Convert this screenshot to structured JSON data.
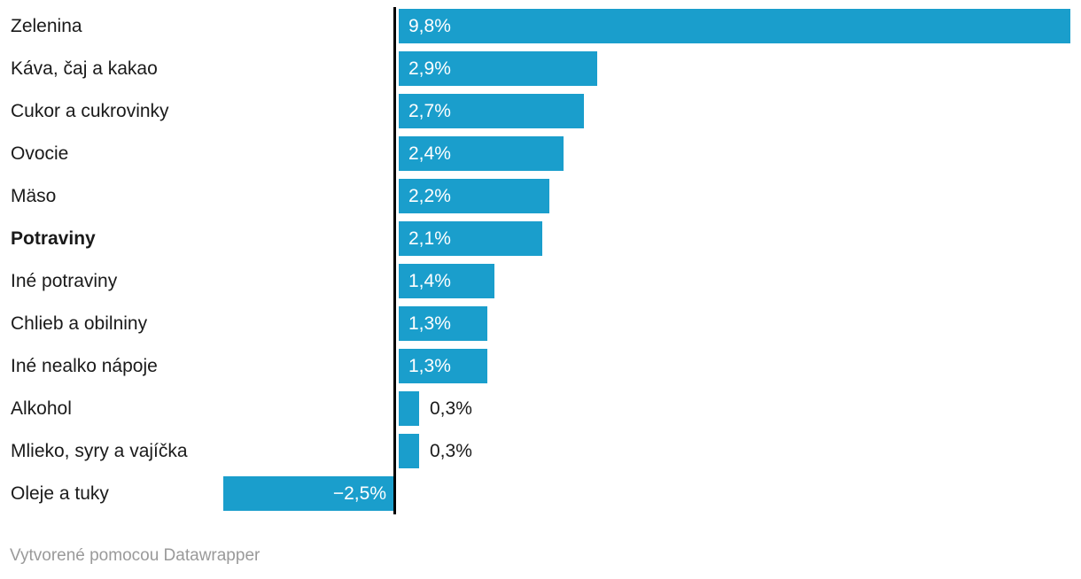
{
  "chart_data": {
    "type": "bar",
    "orientation": "horizontal",
    "title": "",
    "xlabel": "",
    "ylabel": "",
    "unit": "%",
    "decimal_separator": ",",
    "xlim": [
      -2.5,
      9.8
    ],
    "grid": false,
    "legend": false,
    "bar_color": "#1A9ECC",
    "categories": [
      "Zelenina",
      "Káva, čaj a kakao",
      "Cukor a cukrovinky",
      "Ovocie",
      "Mäso",
      "Potraviny",
      "Iné potraviny",
      "Chlieb a obilniny",
      "Iné nealko nápoje",
      "Alkohol",
      "Mlieko, syry a vajíčka",
      "Oleje a tuky"
    ],
    "values": [
      9.8,
      2.9,
      2.7,
      2.4,
      2.2,
      2.1,
      1.4,
      1.3,
      1.3,
      0.3,
      0.3,
      -2.5
    ],
    "rows": [
      {
        "label": "Zelenina",
        "value": 9.8,
        "value_label": "9,8%",
        "bold": false
      },
      {
        "label": "Káva, čaj a kakao",
        "value": 2.9,
        "value_label": "2,9%",
        "bold": false
      },
      {
        "label": "Cukor a cukrovinky",
        "value": 2.7,
        "value_label": "2,7%",
        "bold": false
      },
      {
        "label": "Ovocie",
        "value": 2.4,
        "value_label": "2,4%",
        "bold": false
      },
      {
        "label": "Mäso",
        "value": 2.2,
        "value_label": "2,2%",
        "bold": false
      },
      {
        "label": "Potraviny",
        "value": 2.1,
        "value_label": "2,1%",
        "bold": true
      },
      {
        "label": "Iné potraviny",
        "value": 1.4,
        "value_label": "1,4%",
        "bold": false
      },
      {
        "label": "Chlieb a obilniny",
        "value": 1.3,
        "value_label": "1,3%",
        "bold": false
      },
      {
        "label": "Iné nealko nápoje",
        "value": 1.3,
        "value_label": "1,3%",
        "bold": false
      },
      {
        "label": "Alkohol",
        "value": 0.3,
        "value_label": "0,3%",
        "bold": false
      },
      {
        "label": "Mlieko, syry a vajíčka",
        "value": 0.3,
        "value_label": "0,3%",
        "bold": false
      },
      {
        "label": "Oleje a tuky",
        "value": -2.5,
        "value_label": "−2,5%",
        "bold": false
      }
    ]
  },
  "colors": {
    "bar": "#1A9ECC",
    "axis": "#000000",
    "category_label": "#1a1a1a",
    "value_inside": "#ffffff",
    "value_outside": "#1a1a1a",
    "footer": "#9a9a9a"
  },
  "footer": {
    "credit": "Vytvorené pomocou Datawrapper"
  }
}
